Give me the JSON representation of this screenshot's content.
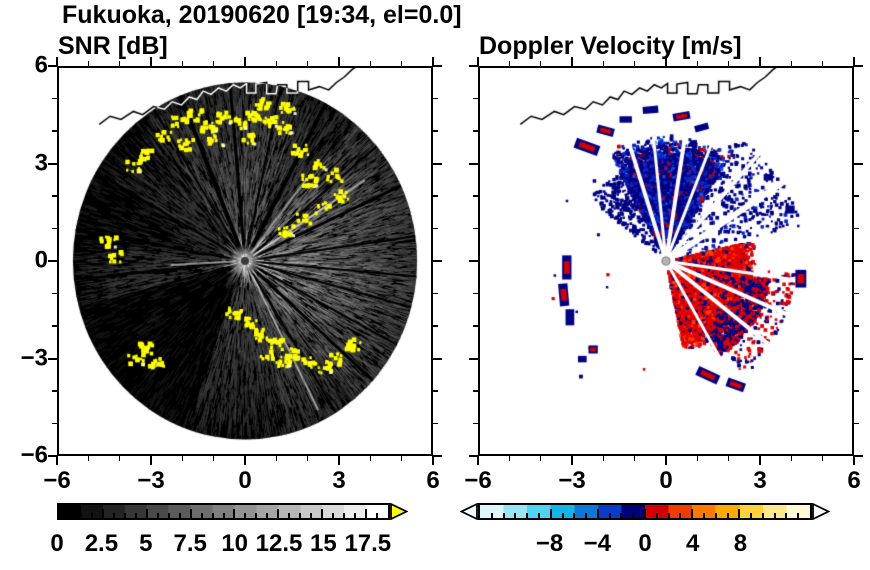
{
  "chart_data": {
    "type": "heatmap",
    "title": "Fukuoka, 20190620 [19:34, el=0.0]",
    "station": "Fukuoka",
    "date": "20190620",
    "time": "19:34",
    "elevation": "0.0",
    "axes": {
      "xlim": [
        -6,
        6
      ],
      "ylim": [
        -6,
        6
      ],
      "major_ticks": [
        -6,
        -3,
        0,
        3,
        6
      ],
      "major_tick_labels": [
        "−6",
        "−3",
        "0",
        "3",
        "6"
      ],
      "minor_tick_step": 1,
      "grid": false
    },
    "coastline": [
      [
        -4.7,
        4.25
      ],
      [
        -4.35,
        4.5
      ],
      [
        -4.0,
        4.4
      ],
      [
        -3.6,
        4.65
      ],
      [
        -3.3,
        4.55
      ],
      [
        -2.95,
        4.8
      ],
      [
        -2.6,
        4.72
      ],
      [
        -2.35,
        4.95
      ],
      [
        -2.05,
        4.85
      ],
      [
        -1.8,
        5.1
      ],
      [
        -1.55,
        5.02
      ],
      [
        -1.35,
        5.28
      ],
      [
        -1.1,
        5.18
      ],
      [
        -0.85,
        5.38
      ],
      [
        -0.6,
        5.28
      ],
      [
        -0.38,
        5.48
      ],
      [
        -0.15,
        5.38
      ],
      [
        0.05,
        5.52
      ],
      [
        0.05,
        5.22
      ],
      [
        0.35,
        5.22
      ],
      [
        0.35,
        5.5
      ],
      [
        0.7,
        5.55
      ],
      [
        0.7,
        5.2
      ],
      [
        1.0,
        5.2
      ],
      [
        1.05,
        5.48
      ],
      [
        1.35,
        5.48
      ],
      [
        1.35,
        5.22
      ],
      [
        1.7,
        5.22
      ],
      [
        1.7,
        5.58
      ],
      [
        2.05,
        5.58
      ],
      [
        2.05,
        5.32
      ],
      [
        2.4,
        5.42
      ],
      [
        2.7,
        5.32
      ],
      [
        2.95,
        5.55
      ],
      [
        3.2,
        5.72
      ],
      [
        3.45,
        5.95
      ],
      [
        3.6,
        6.05
      ]
    ],
    "panels": {
      "snr": {
        "title": "SNR [dB]",
        "colorbar": {
          "range": [
            0,
            18.75
          ],
          "n_bins": 15,
          "ramp": [
            "#000000",
            "#ffffff"
          ],
          "over_color": "#ffff00",
          "tick_values": [
            0,
            2.5,
            5,
            7.5,
            10,
            12.5,
            15,
            17.5
          ],
          "tick_labels": [
            "0",
            "2.5",
            "5",
            "7.5",
            "10",
            "12.5",
            "15",
            "17.5"
          ],
          "minor_tick_step": 0.625
        },
        "features": {
          "disk": {
            "cx": 0,
            "cy": 0,
            "r": 5.55,
            "color": "#000000"
          },
          "azimuth_brightness": [
            [
              0,
              50,
              0.8
            ],
            [
              50,
              70,
              0.42
            ],
            [
              70,
              95,
              0.58
            ],
            [
              95,
              125,
              0.5
            ],
            [
              125,
              150,
              0.3
            ],
            [
              150,
              175,
              0.2
            ],
            [
              175,
              195,
              0.32
            ],
            [
              195,
              250,
              0.1
            ],
            [
              250,
              285,
              0.35
            ],
            [
              285,
              310,
              0.55
            ],
            [
              310,
              360,
              0.85
            ]
          ],
          "dark_spokes": [
            [
              8,
              2
            ],
            [
              25,
              3
            ],
            [
              40,
              2
            ],
            [
              62,
              4
            ],
            [
              78,
              2
            ],
            [
              95,
              3
            ],
            [
              112,
              4
            ],
            [
              122,
              2
            ],
            [
              150,
              2
            ],
            [
              170,
              2
            ],
            [
              186,
              2
            ],
            [
              205,
              2
            ],
            [
              302,
              2
            ],
            [
              318,
              3
            ],
            [
              332,
              2
            ],
            [
              345,
              2
            ],
            [
              355,
              2
            ]
          ],
          "bright_spokes": [
            [
              33,
              0.3,
              4.6
            ],
            [
              52,
              0.3,
              3.2
            ],
            [
              183,
              0.3,
              2.4
            ],
            [
              297,
              0.5,
              5.2
            ]
          ],
          "yellow_blobs": [
            [
              -2.6,
              3.9
            ],
            [
              -2.1,
              4.35
            ],
            [
              -1.6,
              4.5
            ],
            [
              -1.15,
              4.2
            ],
            [
              -0.7,
              4.45
            ],
            [
              -0.2,
              4.3
            ],
            [
              0.3,
              4.5
            ],
            [
              0.8,
              4.35
            ],
            [
              1.3,
              4.15
            ],
            [
              -1.9,
              3.6
            ],
            [
              -0.9,
              3.75
            ],
            [
              0.1,
              3.8
            ],
            [
              0.6,
              4.9
            ],
            [
              1.4,
              4.75
            ],
            [
              1.8,
              3.45
            ],
            [
              2.4,
              3.0
            ],
            [
              2.9,
              2.65
            ],
            [
              2.1,
              2.5
            ],
            [
              1.35,
              0.95
            ],
            [
              1.9,
              1.3
            ],
            [
              2.5,
              1.65
            ],
            [
              3.1,
              2.0
            ],
            [
              -3.2,
              3.3
            ],
            [
              -3.6,
              2.95
            ],
            [
              -4.4,
              0.6
            ],
            [
              -4.15,
              0.15
            ],
            [
              0.15,
              -1.95
            ],
            [
              0.6,
              -2.3
            ],
            [
              1.05,
              -2.6
            ],
            [
              1.55,
              -2.9
            ],
            [
              2.05,
              -3.15
            ],
            [
              2.55,
              -3.3
            ],
            [
              1.2,
              -3.1
            ],
            [
              0.7,
              -2.9
            ],
            [
              2.9,
              -3.05
            ],
            [
              -3.15,
              -2.7
            ],
            [
              -3.5,
              -3.05
            ],
            [
              -2.85,
              -3.2
            ],
            [
              -0.35,
              -1.6
            ],
            [
              3.5,
              -2.6
            ]
          ],
          "center": {
            "glow_r": 0.55,
            "dot_r": 0.13,
            "dot_color": "#3a3a3a"
          }
        }
      },
      "velocity": {
        "title": "Doppler Velocity [m/s]",
        "colorbar": {
          "range": [
            -14,
            14
          ],
          "bin_colors": [
            "#dcf6fa",
            "#96e6f4",
            "#50d2f0",
            "#14b4e6",
            "#0f78d7",
            "#0a3cc8",
            "#000078",
            "#d20000",
            "#f03c00",
            "#ff7800",
            "#ffaa00",
            "#ffd23c",
            "#ffe98c",
            "#fffbd2"
          ],
          "under_color": "#f0ffff",
          "over_color": "#ffffff",
          "tick_values": [
            -8,
            -4,
            0,
            4,
            8
          ],
          "tick_labels": [
            "−8",
            "−4",
            "0",
            "4",
            "8"
          ],
          "minor_tick_step": 1
        },
        "features": {
          "fans": [
            {
              "az": [
                58,
                118
              ],
              "rmax": 3.9,
              "rfade": 2.6,
              "n": 7000,
              "colors": [
                [
                  "#000082",
                  0.62
                ],
                [
                  "#0a28c8",
                  0.22
                ],
                [
                  "#1450e6",
                  0.08
                ],
                [
                  "#c80000",
                  0.08
                ]
              ]
            },
            {
              "az": [
                14,
                60
              ],
              "rmax": 4.5,
              "density": 0.22,
              "n": 1600,
              "colors": [
                [
                  "#000082",
                  0.85
                ],
                [
                  "#0a28c8",
                  0.15
                ]
              ]
            },
            {
              "az": [
                118,
                142
              ],
              "rmax": 3.1,
              "density": 0.35,
              "n": 600,
              "colors": [
                [
                  "#000082",
                  1
                ]
              ]
            },
            {
              "az": [
                282,
                372
              ],
              "rmax": 2.9,
              "rfade": 2.0,
              "n": 7000,
              "colors": [
                [
                  "#e10000",
                  0.68
                ],
                [
                  "#ff3c00",
                  0.14
                ],
                [
                  "#000082",
                  0.18
                ]
              ]
            },
            {
              "az": [
                300,
                350
              ],
              "rmin": 2.3,
              "rmax": 3.4,
              "density": 0.6,
              "n": 1500,
              "colors": [
                [
                  "#000082",
                  0.55
                ],
                [
                  "#e10000",
                  0.45
                ]
              ]
            },
            {
              "az": [
                305,
                355
              ],
              "rmin": 3.0,
              "rmax": 4.2,
              "density": 0.2,
              "n": 700,
              "colors": [
                [
                  "#e10000",
                  0.6
                ],
                [
                  "#000082",
                  0.4
                ]
              ]
            },
            {
              "az": [
                0,
                360
              ],
              "rmin": 0.5,
              "rmax": 4.6,
              "density": 0.03,
              "n": 600,
              "colors": [
                [
                  "#000082",
                  0.7
                ],
                [
                  "#c80000",
                  0.3
                ]
              ]
            }
          ],
          "white_rays": [
            [
              33,
              6
            ],
            [
              48,
              4
            ],
            [
              68,
              3
            ],
            [
              81,
              4
            ],
            [
              96,
              3
            ],
            [
              108,
              4
            ],
            [
              300,
              3
            ],
            [
              322,
              4
            ],
            [
              337,
              4
            ],
            [
              352,
              3
            ]
          ],
          "patches": [
            {
              "x": -2.55,
              "y": 3.55,
              "w": 0.8,
              "h": 0.32,
              "rot": -20,
              "core": "#d20000"
            },
            {
              "x": -1.95,
              "y": 4.05,
              "w": 0.55,
              "h": 0.26,
              "rot": -15,
              "core": "#d20000"
            },
            {
              "x": -1.3,
              "y": 4.4,
              "w": 0.4,
              "h": 0.2,
              "rot": 0,
              "core": null
            },
            {
              "x": -0.5,
              "y": 4.7,
              "w": 0.5,
              "h": 0.22,
              "rot": 5,
              "core": null
            },
            {
              "x": 0.5,
              "y": 4.5,
              "w": 0.55,
              "h": 0.24,
              "rot": 10,
              "core": "#d20000"
            },
            {
              "x": 1.15,
              "y": 4.15,
              "w": 0.45,
              "h": 0.2,
              "rot": 15,
              "core": null
            },
            {
              "x": -3.2,
              "y": -0.2,
              "w": 0.3,
              "h": 0.75,
              "rot": 0,
              "core": "#d20000"
            },
            {
              "x": -3.3,
              "y": -1.05,
              "w": 0.3,
              "h": 0.7,
              "rot": 5,
              "core": "#d20000"
            },
            {
              "x": -3.1,
              "y": -1.75,
              "w": 0.28,
              "h": 0.5,
              "rot": 0,
              "core": null
            },
            {
              "x": 1.35,
              "y": -3.55,
              "w": 0.75,
              "h": 0.3,
              "rot": -25,
              "core": "#d20000"
            },
            {
              "x": 2.25,
              "y": -3.85,
              "w": 0.6,
              "h": 0.28,
              "rot": -20,
              "core": "#d20000"
            },
            {
              "x": -2.35,
              "y": -2.75,
              "w": 0.3,
              "h": 0.25,
              "rot": 0,
              "core": "#d20000"
            },
            {
              "x": -2.7,
              "y": -3.05,
              "w": 0.28,
              "h": 0.2,
              "rot": 0,
              "core": null
            },
            {
              "x": 4.35,
              "y": -0.55,
              "w": 0.35,
              "h": 0.55,
              "rot": 0,
              "core": "#d20000"
            },
            {
              "x": 4.0,
              "y": 1.6,
              "w": 0.3,
              "h": 0.25,
              "rot": 0,
              "core": null
            },
            {
              "x": 3.3,
              "y": 2.6,
              "w": 0.3,
              "h": 0.2,
              "rot": 0,
              "core": null
            }
          ],
          "center_dot": {
            "r": 0.13,
            "color": "#b4b4b4"
          }
        }
      }
    }
  }
}
